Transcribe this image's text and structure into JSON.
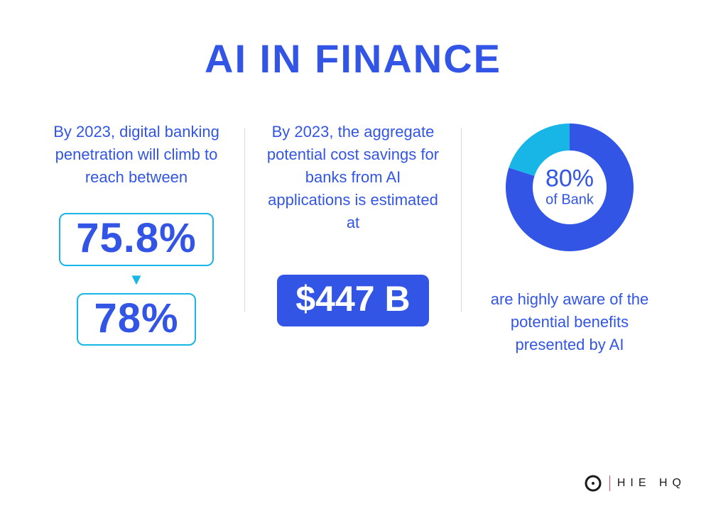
{
  "colors": {
    "primary_blue": "#3355e6",
    "accent_cyan": "#17b6e6",
    "text_blue": "#3355e6",
    "background": "#ffffff",
    "divider": "#d9d9d9",
    "brand_divider": "#d14a5a",
    "brand_text": "#1a1a1a"
  },
  "title": "AI IN FINANCE",
  "title_fontsize": 56,
  "col1": {
    "lead": "By 2023, digital banking penetration will climb to reach between",
    "value_low": "75.8%",
    "value_high": "78%",
    "box_border_color": "#17b6e6",
    "box_text_color": "#3355e6",
    "box_fontsize": 58,
    "arrow_color": "#17b6e6"
  },
  "col2": {
    "lead": "By 2023, the aggregate potential cost savings for banks from AI applications is estimated at",
    "value": "$447 B",
    "pill_bg": "#3355e6",
    "pill_text_color": "#ffffff",
    "pill_fontsize": 50
  },
  "col3": {
    "donut": {
      "type": "donut",
      "value": 80,
      "value_label": "80%",
      "sub_label": "of Bank",
      "segments": [
        {
          "pct": 80,
          "color": "#3355e6"
        },
        {
          "pct": 20,
          "color": "#17b6e6"
        }
      ],
      "outer_radius": 90,
      "inner_radius": 52,
      "start_angle_deg": 0,
      "center_value_fontsize": 34,
      "center_sub_fontsize": 20,
      "center_text_color": "#3355e6"
    },
    "caption": "are highly aware of the potential benefits presented by AI"
  },
  "brand": {
    "text": "HIE HQ",
    "divider_color": "#d14a5a",
    "icon_color": "#1a1a1a"
  },
  "body_text_color": "#3355e6",
  "body_fontsize": 22
}
